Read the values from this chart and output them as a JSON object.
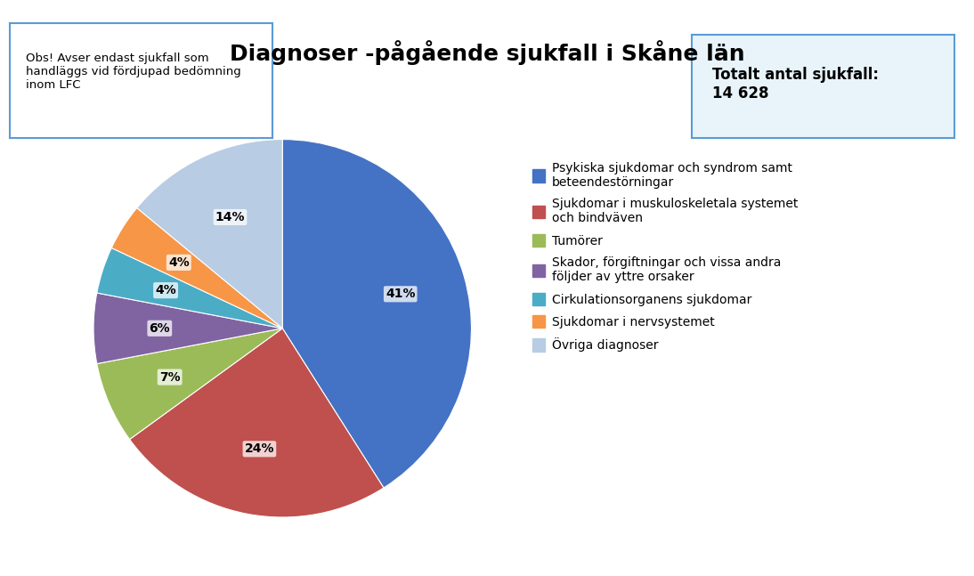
{
  "title": "Diagnoser -pågående sjukfall i Skåne län",
  "obs_text": "Obs! Avser endast sjukfall som\nhandläggs vid fördjupad bedömning\ninom LFC",
  "total_text": "Totalt antal sjukfall:\n14 628",
  "slices": [
    41,
    24,
    7,
    6,
    4,
    4,
    14
  ],
  "labels": [
    "41%",
    "24%",
    "7%",
    "6%",
    "4%",
    "4%",
    "14%"
  ],
  "colors": [
    "#4472C4",
    "#C0504D",
    "#9BBB59",
    "#8064A2",
    "#4BACC6",
    "#F79646",
    "#B8CCE4"
  ],
  "legend_labels": [
    "Psykiska sjukdomar och syndrom samt\nbeteendestörningar",
    "Sjukdomar i muskuloskeletala systemet\noch bindväven",
    "Tumörer",
    "Skador, förgiftningar och vissa andra\nföljder av yttre orsaker",
    "Cirkulationsorganens sjukdomar",
    "Sjukdomar i nervsystemet",
    "Övriga diagnoser"
  ],
  "background_color": "#FFFFFF",
  "obs_box_color": "#FFFFFF",
  "obs_border_color": "#5B9BD5",
  "total_box_color": "#E8F4FA",
  "total_border_color": "#5B9BD5",
  "startangle": 90,
  "label_fontsize": 10,
  "title_fontsize": 18,
  "legend_fontsize": 10
}
